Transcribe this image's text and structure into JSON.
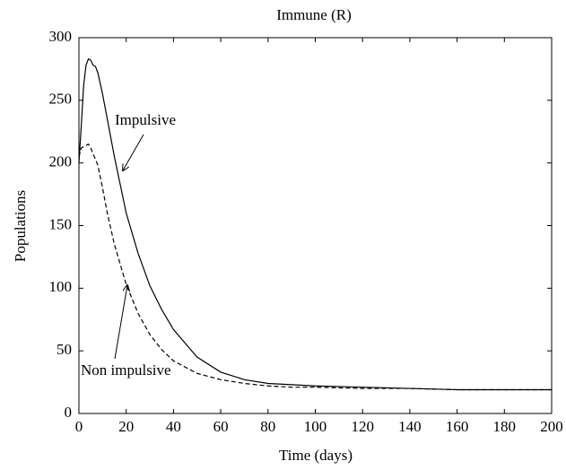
{
  "chart_data": {
    "type": "line",
    "title": "Immune (R)",
    "xlabel": "Time (days)",
    "ylabel": "Populations",
    "x": [
      0,
      1,
      2,
      3,
      4,
      5,
      6,
      7,
      8,
      10,
      12,
      15,
      20,
      25,
      30,
      35,
      40,
      50,
      60,
      70,
      80,
      90,
      100,
      120,
      140,
      160,
      180,
      200
    ],
    "series": [
      {
        "name": "Impulsive",
        "color": "#000000",
        "dash": false,
        "values": [
          200,
          230,
          262,
          278,
          283,
          282,
          278,
          277,
          272,
          255,
          235,
          205,
          160,
          128,
          102,
          83,
          67,
          45,
          33,
          27,
          24,
          23,
          22,
          21,
          20,
          19,
          19,
          19
        ]
      },
      {
        "name": "Non impulsive",
        "color": "#000000",
        "dash": true,
        "values": [
          205,
          212,
          213,
          214,
          215,
          212,
          207,
          203,
          198,
          180,
          160,
          135,
          103,
          80,
          63,
          51,
          42,
          32,
          27,
          24,
          22,
          21,
          21,
          20,
          20,
          19,
          19,
          19
        ]
      }
    ],
    "xlim": [
      0,
      200
    ],
    "xticks": [
      0,
      20,
      40,
      60,
      80,
      100,
      120,
      140,
      160,
      180,
      200
    ],
    "ylim": [
      0,
      300
    ],
    "yticks": [
      0,
      50,
      100,
      150,
      200,
      250,
      300
    ],
    "grid": false
  }
}
